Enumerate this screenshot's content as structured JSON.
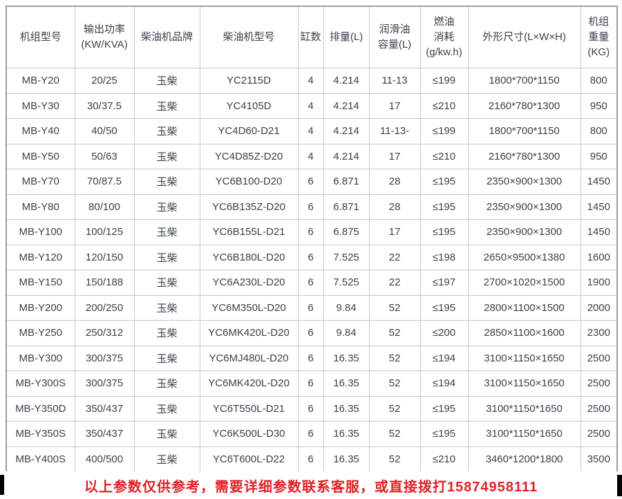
{
  "colors": {
    "text": "#3a414b",
    "grid_border": "#c8c8c8",
    "outer_border": "#9c9c9c",
    "footer_text": "#e02025",
    "background": "#ffffff",
    "artifact": "#000000"
  },
  "table": {
    "columns": [
      {
        "key": "model",
        "label_lines": [
          "机组型号"
        ]
      },
      {
        "key": "power",
        "label_lines": [
          "输出功率",
          "(KW/KVA)"
        ]
      },
      {
        "key": "brand",
        "label_lines": [
          "柴油机品牌"
        ]
      },
      {
        "key": "engine-model",
        "label_lines": [
          "柴油机型号"
        ]
      },
      {
        "key": "cylinders",
        "label_lines": [
          "缸数"
        ]
      },
      {
        "key": "displacement",
        "label_lines": [
          "排量(L)"
        ]
      },
      {
        "key": "oil-capacity",
        "label_lines": [
          "润滑油",
          "容量(L)"
        ]
      },
      {
        "key": "fuel-consumption",
        "label_lines": [
          "燃油",
          "消耗",
          "(g/kw.h)"
        ]
      },
      {
        "key": "dimensions",
        "label_lines": [
          "外形尺寸(L×W×H)"
        ]
      },
      {
        "key": "weight",
        "label_lines": [
          "机组",
          "重量",
          "(KG)"
        ]
      }
    ],
    "rows": [
      [
        "MB-Y20",
        "20/25",
        "玉柴",
        "YC2115D",
        "4",
        "4.214",
        "11-13",
        "≤199",
        "1800*700*1150",
        "800"
      ],
      [
        "MB-Y30",
        "30/37.5",
        "玉柴",
        "YC4105D",
        "4",
        "4.214",
        "17",
        "≤210",
        "2160*780*1300",
        "950"
      ],
      [
        "MB-Y40",
        "40/50",
        "玉柴",
        "YC4D60-D21",
        "4",
        "4.214",
        "11-13-",
        "≤199",
        "1800*700*1150",
        "800"
      ],
      [
        "MB-Y50",
        "50/63",
        "玉柴",
        "YC4D85Z-D20",
        "4",
        "4.214",
        "17",
        "≤210",
        "2160*780*1300",
        "950"
      ],
      [
        "MB-Y70",
        "70/87.5",
        "玉柴",
        "YC6B100-D20",
        "6",
        "6.871",
        "28",
        "≤195",
        "2350×900×1300",
        "1450"
      ],
      [
        "MB-Y80",
        "80/100",
        "玉柴",
        "YC6B135Z-D20",
        "6",
        "6.871",
        "28",
        "≤195",
        "2350×900×1300",
        "1450"
      ],
      [
        "MB-Y100",
        "100/125",
        "玉柴",
        "YC6B155L-D21",
        "6",
        "6.875",
        "17",
        "≤195",
        "2350×900×1300",
        "1450"
      ],
      [
        "MB-Y120",
        "120/150",
        "玉柴",
        "YC6B180L-D20",
        "6",
        "7.525",
        "22",
        "≤198",
        "2650×9500×1380",
        "1600"
      ],
      [
        "MB-Y150",
        "150/188",
        "玉柴",
        "YC6A230L-D20",
        "6",
        "7.525",
        "22",
        "≤197",
        "2700×1020×1500",
        "1900"
      ],
      [
        "MB-Y200",
        "200/250",
        "玉柴",
        "YC6M350L-D20",
        "6",
        "9.84",
        "52",
        "≤195",
        "2800×1100×1500",
        "2000"
      ],
      [
        "MB-Y250",
        "250/312",
        "玉柴",
        "YC6MK420L-D20",
        "6",
        "9.84",
        "52",
        "≤200",
        "2850×1100×1600",
        "2300"
      ],
      [
        "MB-Y300",
        "300/375",
        "玉柴",
        "YC6MJ480L-D20",
        "6",
        "16.35",
        "52",
        "≤194",
        "3100×1150×1650",
        "2500"
      ],
      [
        "MB-Y300S",
        "300/375",
        "玉柴",
        "YC6MK420L-D20",
        "6",
        "16.35",
        "52",
        "≤194",
        "3100×1150×1650",
        "2500"
      ],
      [
        "MB-Y350D",
        "350/437",
        "玉柴",
        "YC6T550L-D21",
        "6",
        "16.35",
        "52",
        "≤195",
        "3100*1150*1650",
        "2500"
      ],
      [
        "MB-Y350S",
        "350/437",
        "玉柴",
        "YC6K500L-D30",
        "6",
        "16.35",
        "52",
        "≤195",
        "3100*1150*1650",
        "2500"
      ],
      [
        "MB-Y400S",
        "400/500",
        "玉柴",
        "YC6T600L-D22",
        "6",
        "16.35",
        "52",
        "≤210",
        "3460*1200*1800",
        "3500"
      ]
    ]
  },
  "footer": {
    "notice": "以上参数仅供参考，需要详细参数联系客服，或直接拨打15874958111"
  }
}
